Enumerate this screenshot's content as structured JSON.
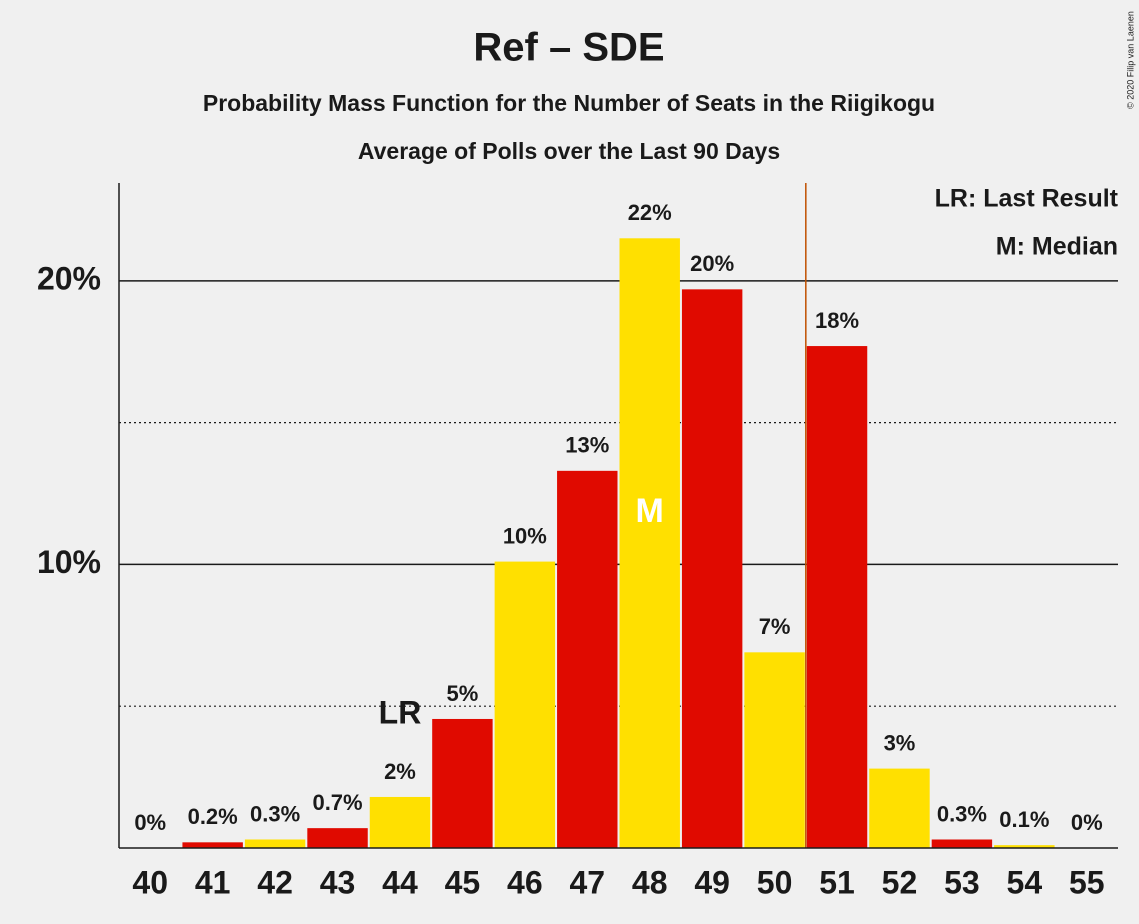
{
  "chart_data": {
    "type": "bar",
    "title": "Ref – SDE",
    "subtitle": "Probability Mass Function for the Number of Seats in the Riigikogu",
    "subtitle2": "Average of Polls over the Last 90 Days",
    "categories": [
      40,
      41,
      42,
      43,
      44,
      45,
      46,
      47,
      48,
      49,
      50,
      51,
      52,
      53,
      54,
      55
    ],
    "values": [
      0,
      0.2,
      0.3,
      0.7,
      1.8,
      4.55,
      10.1,
      13.3,
      21.5,
      19.7,
      6.9,
      17.7,
      2.8,
      0.3,
      0.1,
      0
    ],
    "value_labels": [
      "0%",
      "0.2%",
      "0.3%",
      "0.7%",
      "2%",
      "5%",
      "10%",
      "13%",
      "22%",
      "20%",
      "7%",
      "18%",
      "3%",
      "0.3%",
      "0.1%",
      "0%"
    ],
    "colors": [
      "#ffe000",
      "#e00a00",
      "#ffe000",
      "#e00a00",
      "#ffe000",
      "#e00a00",
      "#ffe000",
      "#e00a00",
      "#ffe000",
      "#e00a00",
      "#ffe000",
      "#e00a00",
      "#ffe000",
      "#e00a00",
      "#ffe000",
      "#e00a00"
    ],
    "ylim": [
      0,
      23.45
    ],
    "yticks": [
      {
        "value": 10,
        "label": "10%"
      },
      {
        "value": 20,
        "label": "20%"
      }
    ],
    "minor_yticks": [
      5,
      15
    ],
    "last_result": {
      "label": "LR",
      "seats": 44
    },
    "median": {
      "label": "M",
      "seats": 48
    },
    "majority_seats": 51,
    "majority_color": "#c05000",
    "legend": [
      "LR: Last Result",
      "M: Median"
    ],
    "copyright": "© 2020 Filip van Laenen"
  }
}
